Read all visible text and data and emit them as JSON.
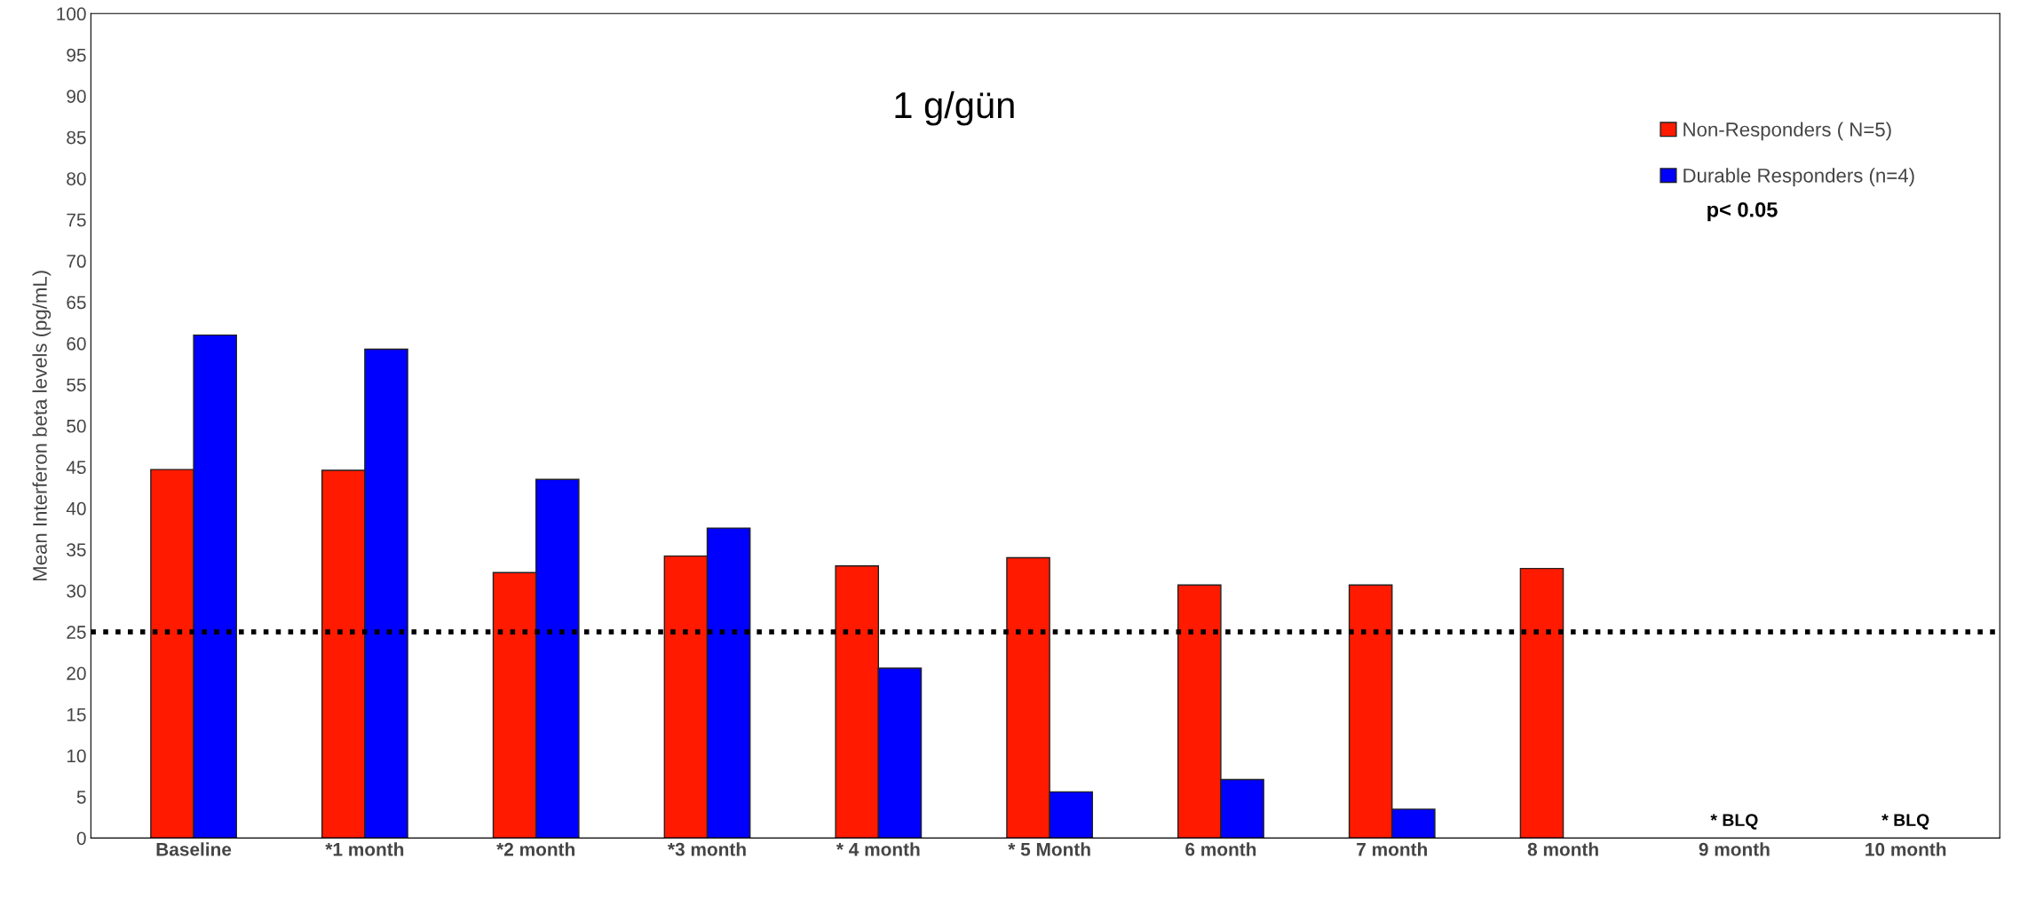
{
  "chart_data": {
    "type": "bar",
    "title": "1 g/gün",
    "ylabel": "Mean Interferon beta levels (pg/mL)",
    "categories": [
      "Baseline",
      "*1 month",
      "*2 month",
      "*3 month",
      "* 4 month",
      "* 5 Month",
      "6 month",
      "7 month",
      "8 month",
      "9 month",
      "10 month"
    ],
    "series": [
      {
        "name": "Non-Responders ( N=5)",
        "color": "#ff1a00",
        "values": [
          44.7,
          44.6,
          32.2,
          34.2,
          33.0,
          34.0,
          30.7,
          30.7,
          32.7,
          null,
          null
        ]
      },
      {
        "name": "Durable Responders (n=4)",
        "color": "#0000ff",
        "values": [
          61.0,
          59.3,
          43.5,
          37.6,
          20.6,
          5.6,
          7.1,
          3.5,
          null,
          null,
          null
        ]
      }
    ],
    "ylim": [
      0,
      100
    ],
    "yticks": [
      0,
      5,
      10,
      15,
      20,
      25,
      30,
      35,
      40,
      45,
      50,
      55,
      60,
      65,
      70,
      75,
      80,
      85,
      90,
      95,
      100
    ],
    "ref_lines": [
      {
        "axis": "y",
        "value": 25,
        "color": "#000000",
        "line_style": "dotted"
      }
    ],
    "annotations": [
      "p< 0.05",
      "* BLQ",
      "* BLQ"
    ],
    "legend": "top right",
    "grid": false
  }
}
